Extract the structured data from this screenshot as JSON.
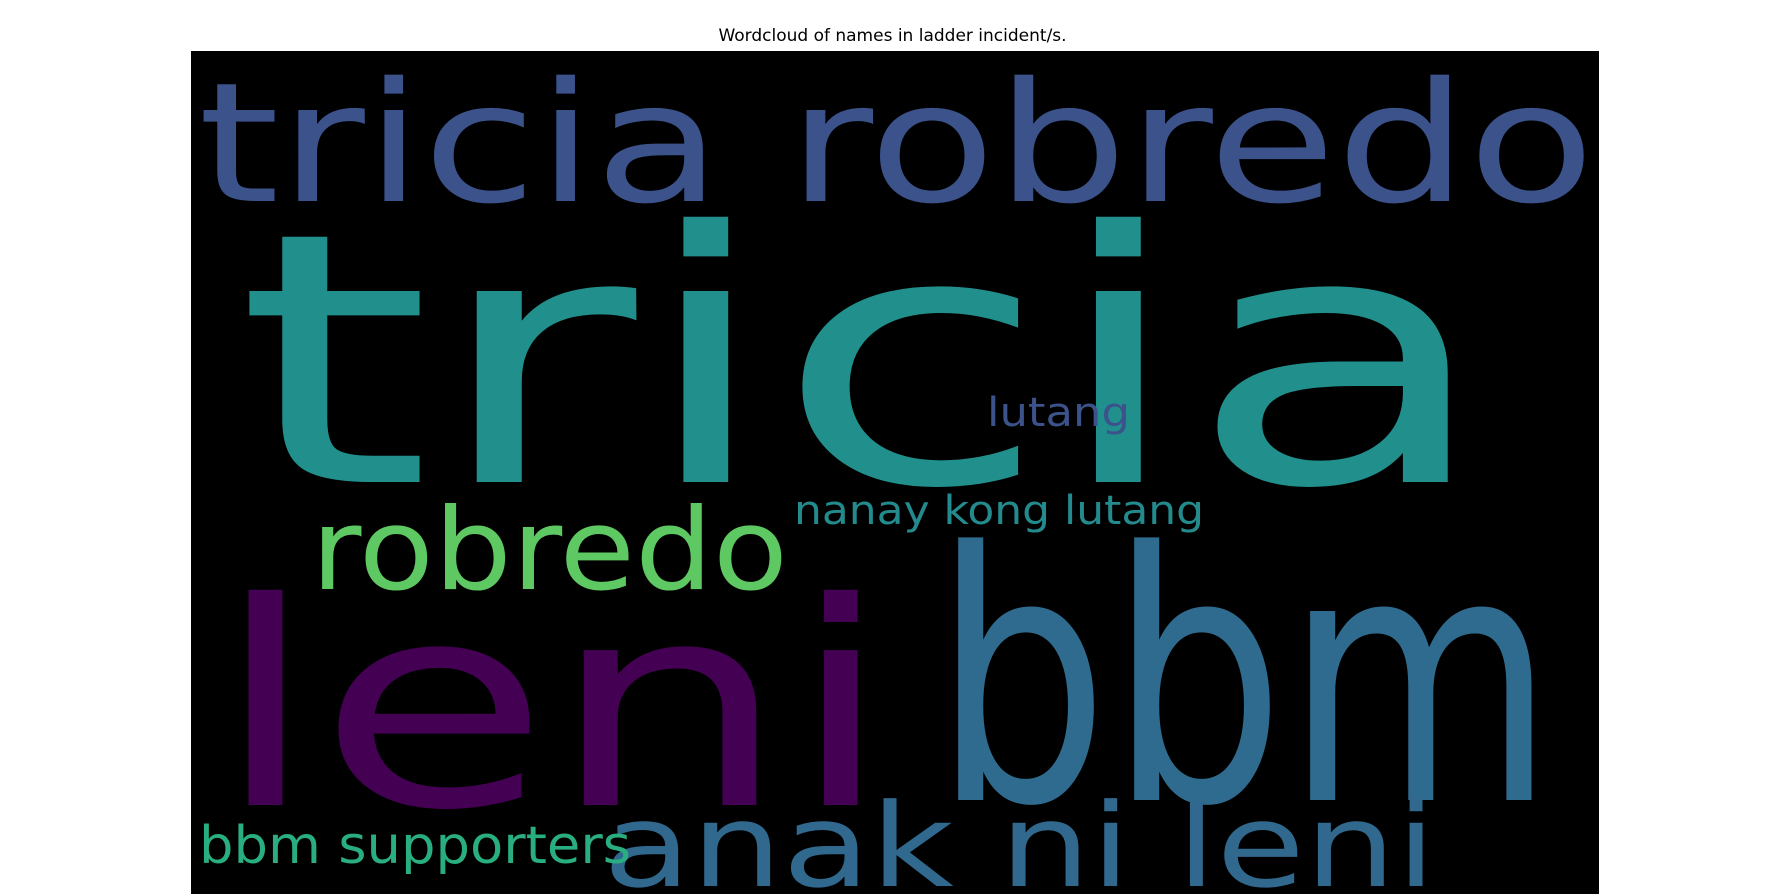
{
  "chart_data": {
    "type": "wordcloud",
    "title": "Wordcloud of names in ladder incident/s.",
    "background": "#000000",
    "words": [
      {
        "text": "tricia",
        "color": "#21908d"
      },
      {
        "text": "bbm",
        "color": "#2f6b8e"
      },
      {
        "text": "leni",
        "color": "#440154"
      },
      {
        "text": "tricia robredo",
        "color": "#3b528b"
      },
      {
        "text": "anak ni leni",
        "color": "#31688e"
      },
      {
        "text": "robredo",
        "color": "#5ec962"
      },
      {
        "text": "bbm supporters",
        "color": "#29af7f"
      },
      {
        "text": "nanay kong lutang",
        "color": "#238a8d"
      },
      {
        "text": "lutang",
        "color": "#3b528b"
      }
    ]
  }
}
